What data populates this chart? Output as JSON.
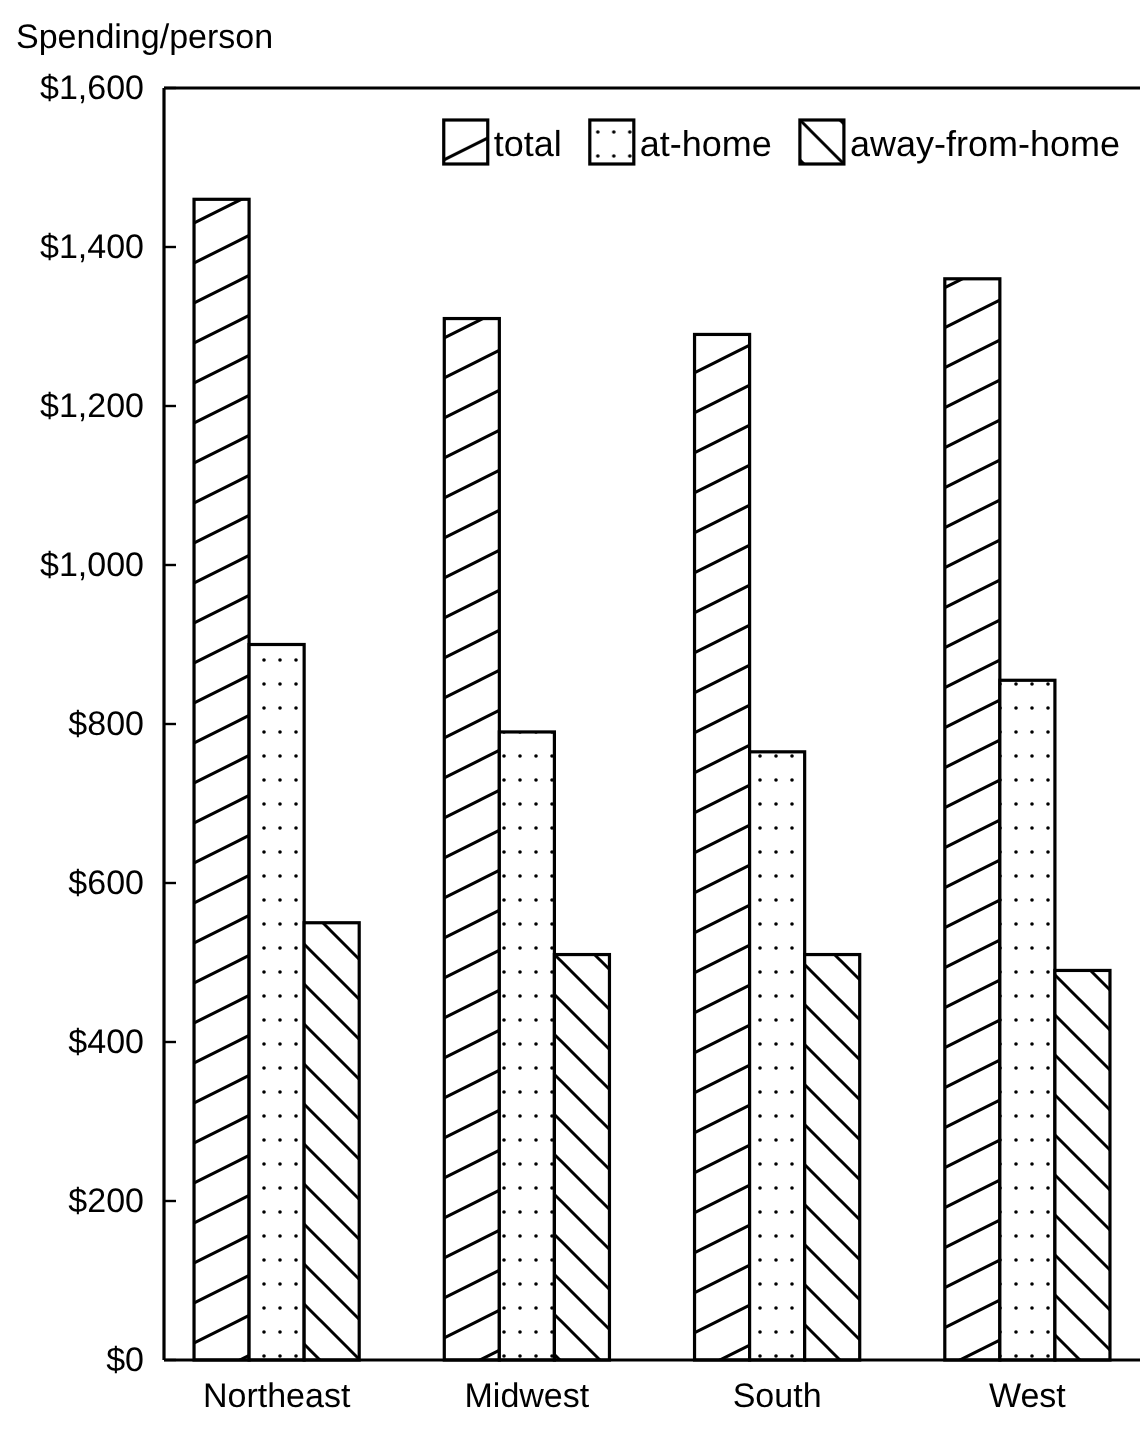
{
  "chart_data": {
    "type": "bar",
    "ylabel": "Spending/person",
    "categories": [
      "Northeast",
      "Midwest",
      "South",
      "West"
    ],
    "series": [
      {
        "name": "total",
        "color": "#000000",
        "values": [
          1460,
          1310,
          1290,
          1360
        ]
      },
      {
        "name": "at-home",
        "color": "#000000",
        "values": [
          900,
          790,
          765,
          855
        ]
      },
      {
        "name": "away-from-home",
        "color": "#000000",
        "values": [
          550,
          510,
          510,
          490
        ]
      }
    ],
    "ylim": [
      0,
      1600
    ],
    "yticks": [
      {
        "value": 0,
        "label": "$0"
      },
      {
        "value": 200,
        "label": "$200"
      },
      {
        "value": 400,
        "label": "$400"
      },
      {
        "value": 600,
        "label": "$600"
      },
      {
        "value": 800,
        "label": "$800"
      },
      {
        "value": 1000,
        "label": "$1,000"
      },
      {
        "value": 1200,
        "label": "$1,200"
      },
      {
        "value": 1400,
        "label": "$1,400"
      },
      {
        "value": 1600,
        "label": "$1,600"
      }
    ],
    "grid": false,
    "legend": "top right"
  }
}
